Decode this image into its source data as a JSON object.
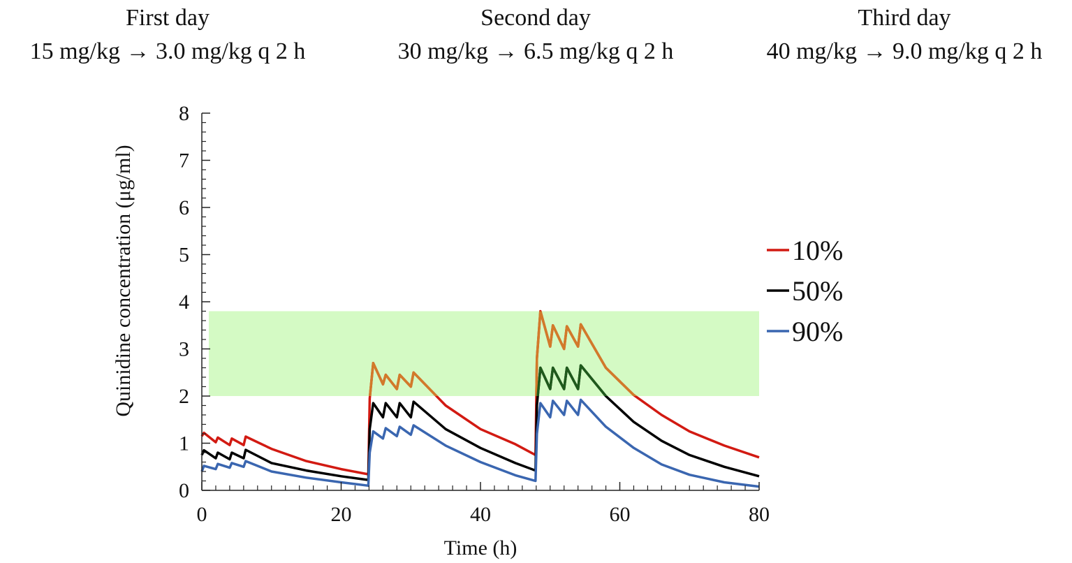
{
  "header": {
    "days": [
      {
        "title": "First day",
        "regimen": "15 mg/kg → 3.0 mg/kg q 2 h"
      },
      {
        "title": "Second day",
        "regimen": "30 mg/kg → 6.5 mg/kg q 2 h"
      },
      {
        "title": "Third day",
        "regimen": "40 mg/kg → 9.0 mg/kg q 2 h"
      }
    ]
  },
  "colors": {
    "p10": "#d21a12",
    "p50": "#000000",
    "p90": "#3a66b0",
    "band": "#d4fac4",
    "p10_in_band": "#d27a2a",
    "p50_in_band": "#1f5a1c"
  },
  "chart_data": {
    "type": "line",
    "title": "",
    "xlabel": "Time (h)",
    "ylabel": "Quinidine concentration (μg/ml)",
    "xlim": [
      0,
      80
    ],
    "ylim": [
      0,
      8
    ],
    "xticks": [
      0,
      20,
      40,
      60,
      80
    ],
    "yticks": [
      0,
      1,
      2,
      3,
      4,
      5,
      6,
      7,
      8
    ],
    "therapeutic_range": [
      2.0,
      3.8
    ],
    "legend_position": "right",
    "series": [
      {
        "name": "10%",
        "color_key": "p10",
        "points": [
          [
            0,
            1.15
          ],
          [
            0.3,
            1.22
          ],
          [
            2,
            1.02
          ],
          [
            2.3,
            1.12
          ],
          [
            4,
            0.96
          ],
          [
            4.3,
            1.1
          ],
          [
            6,
            0.96
          ],
          [
            6.3,
            1.14
          ],
          [
            10,
            0.88
          ],
          [
            15,
            0.62
          ],
          [
            20,
            0.45
          ],
          [
            23.9,
            0.34
          ],
          [
            24.1,
            1.95
          ],
          [
            24.6,
            2.7
          ],
          [
            26,
            2.25
          ],
          [
            26.4,
            2.45
          ],
          [
            28,
            2.15
          ],
          [
            28.4,
            2.45
          ],
          [
            30,
            2.2
          ],
          [
            30.4,
            2.5
          ],
          [
            35,
            1.8
          ],
          [
            40,
            1.3
          ],
          [
            45,
            0.98
          ],
          [
            47.9,
            0.75
          ],
          [
            48.1,
            2.8
          ],
          [
            48.6,
            3.8
          ],
          [
            50,
            3.05
          ],
          [
            50.4,
            3.5
          ],
          [
            52,
            3.0
          ],
          [
            52.4,
            3.48
          ],
          [
            54,
            3.05
          ],
          [
            54.4,
            3.52
          ],
          [
            58,
            2.6
          ],
          [
            62,
            2.02
          ],
          [
            66,
            1.6
          ],
          [
            70,
            1.25
          ],
          [
            75,
            0.95
          ],
          [
            80,
            0.7
          ]
        ]
      },
      {
        "name": "50%",
        "color_key": "p50",
        "points": [
          [
            0,
            0.75
          ],
          [
            0.3,
            0.85
          ],
          [
            2,
            0.68
          ],
          [
            2.3,
            0.8
          ],
          [
            4,
            0.66
          ],
          [
            4.3,
            0.8
          ],
          [
            6,
            0.68
          ],
          [
            6.3,
            0.86
          ],
          [
            10,
            0.58
          ],
          [
            15,
            0.42
          ],
          [
            20,
            0.3
          ],
          [
            23.9,
            0.22
          ],
          [
            24.1,
            1.3
          ],
          [
            24.6,
            1.85
          ],
          [
            26,
            1.55
          ],
          [
            26.4,
            1.85
          ],
          [
            28,
            1.55
          ],
          [
            28.4,
            1.85
          ],
          [
            30,
            1.55
          ],
          [
            30.4,
            1.88
          ],
          [
            35,
            1.3
          ],
          [
            40,
            0.9
          ],
          [
            45,
            0.58
          ],
          [
            47.9,
            0.42
          ],
          [
            48.1,
            1.8
          ],
          [
            48.6,
            2.6
          ],
          [
            50,
            2.15
          ],
          [
            50.4,
            2.6
          ],
          [
            52,
            2.15
          ],
          [
            52.4,
            2.6
          ],
          [
            54,
            2.15
          ],
          [
            54.4,
            2.65
          ],
          [
            58,
            2.0
          ],
          [
            62,
            1.45
          ],
          [
            66,
            1.05
          ],
          [
            70,
            0.75
          ],
          [
            75,
            0.5
          ],
          [
            80,
            0.3
          ]
        ]
      },
      {
        "name": "90%",
        "color_key": "p90",
        "points": [
          [
            0,
            0.4
          ],
          [
            0.3,
            0.52
          ],
          [
            2,
            0.45
          ],
          [
            2.3,
            0.56
          ],
          [
            4,
            0.48
          ],
          [
            4.3,
            0.58
          ],
          [
            6,
            0.5
          ],
          [
            6.3,
            0.62
          ],
          [
            10,
            0.4
          ],
          [
            15,
            0.27
          ],
          [
            20,
            0.17
          ],
          [
            23.9,
            0.1
          ],
          [
            24.1,
            0.8
          ],
          [
            24.6,
            1.25
          ],
          [
            26,
            1.1
          ],
          [
            26.4,
            1.32
          ],
          [
            28,
            1.15
          ],
          [
            28.4,
            1.35
          ],
          [
            30,
            1.18
          ],
          [
            30.4,
            1.38
          ],
          [
            35,
            0.95
          ],
          [
            40,
            0.6
          ],
          [
            45,
            0.32
          ],
          [
            47.9,
            0.2
          ],
          [
            48.1,
            1.2
          ],
          [
            48.6,
            1.85
          ],
          [
            50,
            1.55
          ],
          [
            50.4,
            1.9
          ],
          [
            52,
            1.6
          ],
          [
            52.4,
            1.9
          ],
          [
            54,
            1.6
          ],
          [
            54.4,
            1.92
          ],
          [
            58,
            1.35
          ],
          [
            62,
            0.9
          ],
          [
            66,
            0.55
          ],
          [
            70,
            0.33
          ],
          [
            75,
            0.17
          ],
          [
            80,
            0.08
          ]
        ]
      }
    ]
  }
}
